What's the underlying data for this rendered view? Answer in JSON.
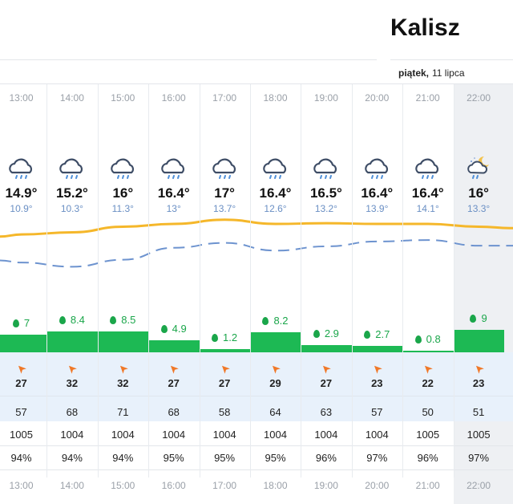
{
  "location": {
    "city": "Kalisz"
  },
  "date": {
    "weekday": "piątek,",
    "day": "11 lipca"
  },
  "hours": [
    {
      "time": "13:00",
      "icon": "rain-cloud-icon",
      "temp": "14.9°",
      "feels": "10.9°",
      "rain": "7",
      "rain_mm": 7,
      "wind": "27",
      "gust": "57",
      "pressure": "1005",
      "humidity": "94%"
    },
    {
      "time": "14:00",
      "icon": "rain-cloud-icon",
      "temp": "15.2°",
      "feels": "10.3°",
      "rain": "8.4",
      "rain_mm": 8.4,
      "wind": "32",
      "gust": "68",
      "pressure": "1004",
      "humidity": "94%"
    },
    {
      "time": "15:00",
      "icon": "rain-cloud-icon",
      "temp": "16°",
      "feels": "11.3°",
      "rain": "8.5",
      "rain_mm": 8.5,
      "wind": "32",
      "gust": "71",
      "pressure": "1004",
      "humidity": "94%"
    },
    {
      "time": "16:00",
      "icon": "rain-cloud-icon",
      "temp": "16.4°",
      "feels": "13°",
      "rain": "4.9",
      "rain_mm": 4.9,
      "wind": "27",
      "gust": "68",
      "pressure": "1004",
      "humidity": "95%"
    },
    {
      "time": "17:00",
      "icon": "rain-cloud-icon",
      "temp": "17°",
      "feels": "13.7°",
      "rain": "1.2",
      "rain_mm": 1.2,
      "wind": "27",
      "gust": "58",
      "pressure": "1004",
      "humidity": "95%"
    },
    {
      "time": "18:00",
      "icon": "rain-cloud-icon",
      "temp": "16.4°",
      "feels": "12.6°",
      "rain": "8.2",
      "rain_mm": 8.2,
      "wind": "29",
      "gust": "64",
      "pressure": "1004",
      "humidity": "95%"
    },
    {
      "time": "19:00",
      "icon": "rain-cloud-icon",
      "temp": "16.5°",
      "feels": "13.2°",
      "rain": "2.9",
      "rain_mm": 2.9,
      "wind": "27",
      "gust": "63",
      "pressure": "1004",
      "humidity": "96%"
    },
    {
      "time": "20:00",
      "icon": "rain-cloud-icon",
      "temp": "16.4°",
      "feels": "13.9°",
      "rain": "2.7",
      "rain_mm": 2.7,
      "wind": "23",
      "gust": "57",
      "pressure": "1004",
      "humidity": "97%"
    },
    {
      "time": "21:00",
      "icon": "rain-cloud-icon",
      "temp": "16.4°",
      "feels": "14.1°",
      "rain": "0.8",
      "rain_mm": 0.8,
      "wind": "22",
      "gust": "50",
      "pressure": "1005",
      "humidity": "96%"
    },
    {
      "time": "22:00",
      "icon": "night-rain-cloud-icon",
      "temp": "16°",
      "feels": "13.3°",
      "rain": "9",
      "rain_mm": 9,
      "wind": "23",
      "gust": "51",
      "pressure": "1005",
      "humidity": "97%"
    }
  ],
  "colors": {
    "temp_line": "#f5b72a",
    "feels_line": "#6d93cf",
    "rain_bar": "#1db954",
    "wind_arrow": "#f07828",
    "highlight_column": "#eef0f3",
    "wind_band": "#e8f1fb"
  }
}
